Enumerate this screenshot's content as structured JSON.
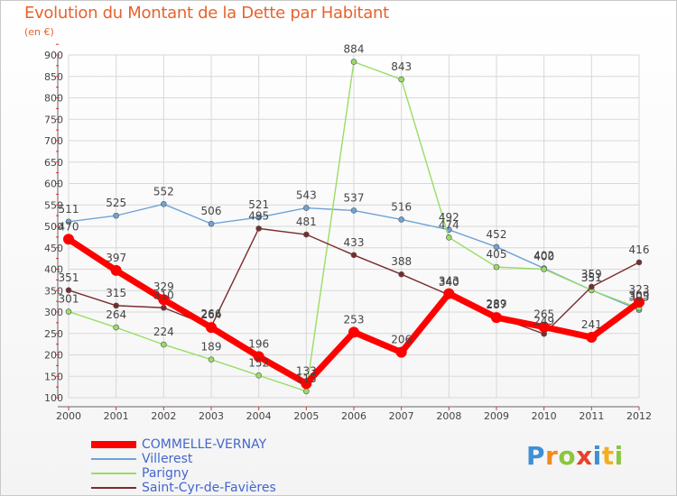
{
  "chart_data": {
    "type": "line",
    "title": "Evolution du Montant de la Dette par Habitant",
    "subtitle": "(en €)",
    "x": [
      "2000",
      "2001",
      "2002",
      "2003",
      "2004",
      "2005",
      "2006",
      "2007",
      "2008",
      "2009",
      "2010",
      "2011",
      "2012"
    ],
    "yticks": [
      100,
      150,
      200,
      250,
      300,
      350,
      400,
      450,
      500,
      550,
      600,
      650,
      700,
      750,
      800,
      850,
      900
    ],
    "ylim": [
      100,
      900
    ],
    "grid": true,
    "legend_position": "bottom-left",
    "series": [
      {
        "name": "Villerest",
        "color": "#6fa3d8",
        "values": [
          511,
          525,
          552,
          506,
          521,
          543,
          537,
          516,
          492,
          452,
          402,
          351,
          305
        ]
      },
      {
        "name": "Parigny",
        "color": "#99dd66",
        "values": [
          301,
          264,
          224,
          189,
          152,
          115,
          884,
          843,
          474,
          405,
          400,
          351,
          309
        ]
      },
      {
        "name": "Saint-Cyr-de-Favières",
        "color": "#7a2c2c",
        "values": [
          351,
          315,
          310,
          266,
          495,
          481,
          433,
          388,
          340,
          289,
          249,
          359,
          416
        ]
      },
      {
        "name": "COMMELLE-VERNAY",
        "color": "#ff0000",
        "values": [
          470,
          397,
          329,
          264,
          196,
          133,
          253,
          206,
          343,
          287,
          265,
          241,
          323
        ]
      }
    ],
    "point_labels": [
      {
        "series": "Villerest",
        "labels": [
          "511",
          "525",
          "552",
          "506",
          "521",
          "543",
          "537",
          "516",
          "492",
          "452",
          "402",
          "351",
          "305"
        ]
      },
      {
        "series": "Parigny",
        "labels": [
          "301",
          "264",
          "224",
          "189",
          "152",
          "115",
          "884",
          "843",
          "474",
          "405",
          "400",
          "351",
          "309"
        ]
      },
      {
        "series": "Saint-Cyr-de-Favières",
        "labels": [
          "351",
          "315",
          "310",
          "266",
          "495",
          "481",
          "433",
          "388",
          "340",
          "289",
          "249",
          "359",
          "416"
        ]
      },
      {
        "series": "COMMELLE-VERNAY",
        "labels": [
          "470",
          "397",
          "329",
          "264",
          "196",
          "133",
          "253",
          "206",
          "343",
          "287",
          "265",
          "241",
          "323"
        ]
      }
    ]
  },
  "legend": [
    {
      "label": "COMMELLE-VERNAY",
      "color": "#ff0000"
    },
    {
      "label": "Villerest",
      "color": "#6fa3d8"
    },
    {
      "label": "Parigny",
      "color": "#99dd66"
    },
    {
      "label": "Saint-Cyr-de-Favières",
      "color": "#7a2c2c"
    }
  ],
  "logo": {
    "letters": [
      "P",
      "r",
      "o",
      "x",
      "i",
      "t",
      "i"
    ],
    "colors": [
      "#3d8fd6",
      "#f28a1e",
      "#8cc63f",
      "#e8412c",
      "#3d8fd6",
      "#f2b01e",
      "#8cc63f"
    ]
  }
}
